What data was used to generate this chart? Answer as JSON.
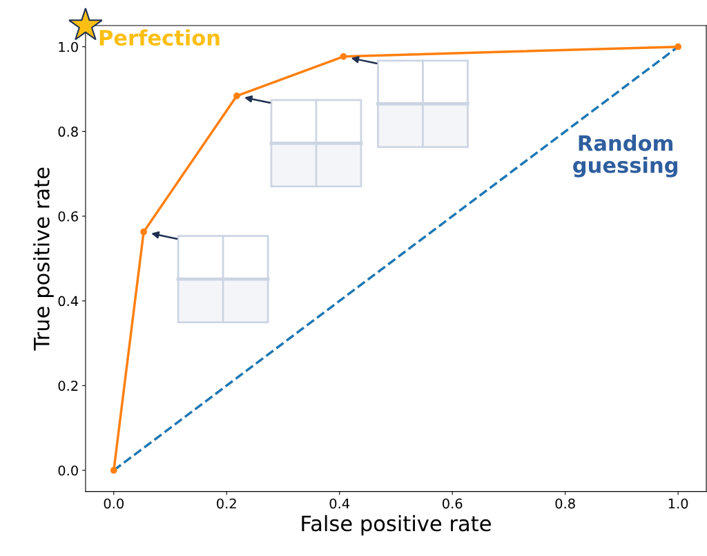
{
  "chart_data": {
    "type": "line",
    "xlabel": "False positive rate",
    "ylabel": "True positive rate",
    "xlim": [
      -0.05,
      1.05
    ],
    "ylim": [
      -0.05,
      1.05
    ],
    "xticks": [
      {
        "value": 0,
        "label": "0.0"
      },
      {
        "value": 0.2,
        "label": "0.2"
      },
      {
        "value": 0.4,
        "label": "0.4"
      },
      {
        "value": 0.6,
        "label": "0.6"
      },
      {
        "value": 0.8,
        "label": "0.8"
      },
      {
        "value": 1,
        "label": "1.0"
      }
    ],
    "yticks": [
      {
        "value": 0,
        "label": "0.0"
      },
      {
        "value": 0.2,
        "label": "0.2"
      },
      {
        "value": 0.4,
        "label": "0.4"
      },
      {
        "value": 0.6,
        "label": "0.6"
      },
      {
        "value": 0.8,
        "label": "0.8"
      },
      {
        "value": 1,
        "label": "1.0"
      }
    ],
    "grid": false,
    "legend": false,
    "series": [
      {
        "name": "Random guessing",
        "color": "#1f77b4",
        "x": [
          0,
          1
        ],
        "values": [
          0,
          1
        ],
        "line_style": "dashed",
        "marker": "none"
      },
      {
        "color": "#ff7f0e",
        "x": [
          0,
          0.053,
          0.218,
          0.407,
          1
        ],
        "values": [
          0,
          0.563,
          0.884,
          0.977,
          1
        ],
        "line_style": "solid",
        "marker": "circle"
      }
    ],
    "annotations": [
      "Perfection"
    ]
  }
}
